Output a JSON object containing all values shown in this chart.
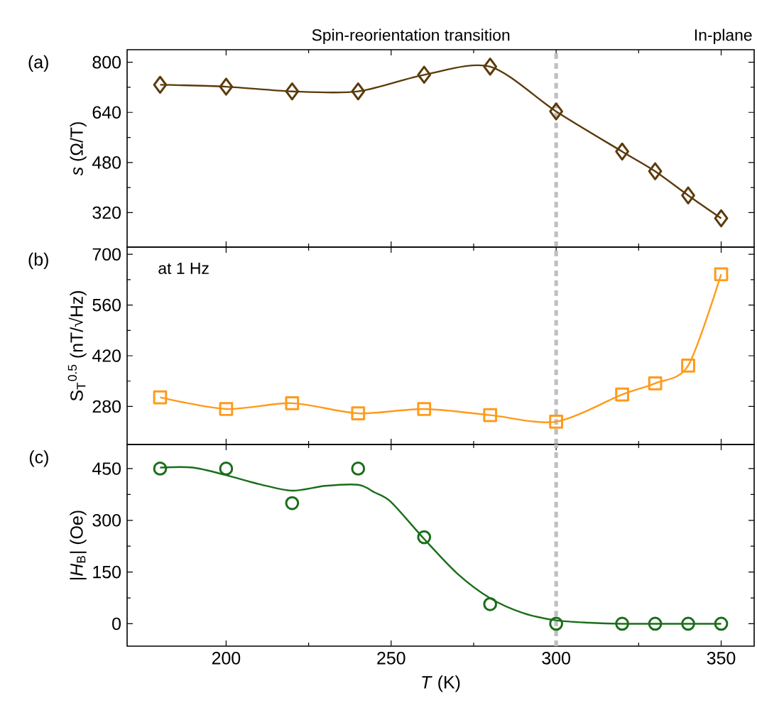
{
  "chart_data": [
    {
      "type": "line",
      "title": "(a)",
      "ylabel": "*s* (Ω/T)",
      "annotations": [
        "Spin-reorientation transition",
        "In-plane"
      ],
      "x": [
        180,
        200,
        220,
        240,
        260,
        280,
        300,
        320,
        330,
        340,
        350
      ],
      "series": [
        {
          "color": "#5c3a0a",
          "marker": "diamond",
          "values": [
            728,
            722,
            707,
            707,
            760,
            786,
            643,
            515,
            452,
            375,
            302
          ]
        }
      ],
      "xlim": [
        170,
        360
      ],
      "xticks": [
        200,
        250,
        300,
        350
      ],
      "ylim": [
        210,
        840
      ],
      "yticks": [
        320,
        480,
        640,
        800
      ],
      "tick_labels": "y",
      "line_style": "solid",
      "ref_lines": [
        {
          "axis": "x",
          "value": 300,
          "color": "#c0c0c0",
          "line_style": "dashed"
        }
      ]
    },
    {
      "type": "line",
      "title": "(b)",
      "ylabel": "S$_{T}$$^{0.5}$ (nT/√Hz)",
      "annotations": [
        "at 1 Hz"
      ],
      "x": [
        180,
        200,
        220,
        240,
        260,
        280,
        300,
        320,
        330,
        340,
        350
      ],
      "series": [
        {
          "color": "#ff9a1a",
          "marker": "square",
          "values": [
            305,
            273,
            289,
            261,
            273,
            256,
            238,
            313,
            344,
            393,
            645
          ]
        }
      ],
      "xlim": [
        170,
        360
      ],
      "xticks": [
        200,
        250,
        300,
        350
      ],
      "ylim": [
        175,
        720
      ],
      "yticks": [
        280,
        420,
        560,
        700
      ],
      "tick_labels": "y",
      "line_style": "solid",
      "ref_lines": [
        {
          "axis": "x",
          "value": 300,
          "color": "#c0c0c0",
          "line_style": "dashed"
        }
      ]
    },
    {
      "type": "scatter",
      "title": "(c)",
      "ylabel": "|*H*$_{B}$| (Oe)",
      "xlabel": "*T* (K)",
      "x": [
        180,
        200,
        220,
        240,
        260,
        280,
        300,
        320,
        330,
        340,
        350
      ],
      "series": [
        {
          "color": "#1a6e1a",
          "marker": "circle",
          "values": [
            450,
            450,
            350,
            450,
            251,
            57,
            0,
            0,
            0,
            0,
            0
          ]
        },
        {
          "type": "line",
          "color": "#1a6e1a",
          "marker": "none",
          "line_style": "solid",
          "x": [
            180,
            190,
            200,
            210,
            220,
            230,
            240,
            245,
            250,
            260,
            270,
            280,
            290,
            300,
            310,
            320,
            335,
            350
          ],
          "values": [
            453,
            453,
            431,
            405,
            386,
            400,
            403,
            381,
            353,
            246,
            146,
            74,
            31,
            10,
            3,
            0,
            0,
            0
          ]
        }
      ],
      "xlim": [
        170,
        360
      ],
      "xticks": [
        200,
        250,
        300,
        350
      ],
      "ylim": [
        -65,
        520
      ],
      "yticks": [
        0,
        150,
        300,
        450
      ],
      "ref_lines": [
        {
          "axis": "x",
          "value": 300,
          "color": "#c0c0c0",
          "line_style": "dashed"
        }
      ]
    }
  ]
}
